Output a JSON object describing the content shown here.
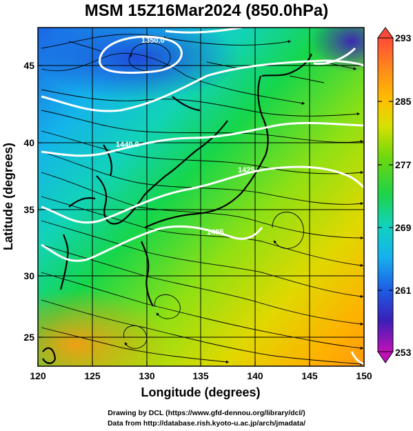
{
  "title": "MSM 15Z16Mar2024 (850.0hPa)",
  "x_axis": {
    "title": "Longitude (degrees)",
    "ticks": [
      "120",
      "125",
      "130",
      "135",
      "140",
      "145",
      "150"
    ],
    "range": [
      120,
      150
    ]
  },
  "y_axis": {
    "title": "Latitude  (degrees)",
    "ticks": [
      "25",
      "30",
      "35",
      "40",
      "45"
    ],
    "range": [
      22.4,
      47.6
    ]
  },
  "colorbar": {
    "labels": [
      "293",
      "285",
      "277",
      "269",
      "261",
      "253"
    ],
    "range": [
      253,
      293
    ],
    "colors": [
      "#ff2f6a",
      "#ff7a2a",
      "#ffb000",
      "#e9d000",
      "#9be000",
      "#2fd22f",
      "#11d499",
      "#14c8e8",
      "#1e82e8",
      "#1f3fd8",
      "#4a1fb8",
      "#b000b0"
    ]
  },
  "contours": [
    {
      "label": "1350.0"
    },
    {
      "label": "1440.0"
    },
    {
      "label": "1425"
    },
    {
      "label": "1485"
    }
  ],
  "credits": {
    "line1": "Drawing by DCL (https://www.gfd-dennou.org/library/dcl/)",
    "line2": "Data from http://database.rish.kyoto-u.ac.jp/arch/jmadata/"
  },
  "colors": {
    "contour": "#ffffff",
    "coastline": "#000000",
    "streamline": "#000000"
  }
}
